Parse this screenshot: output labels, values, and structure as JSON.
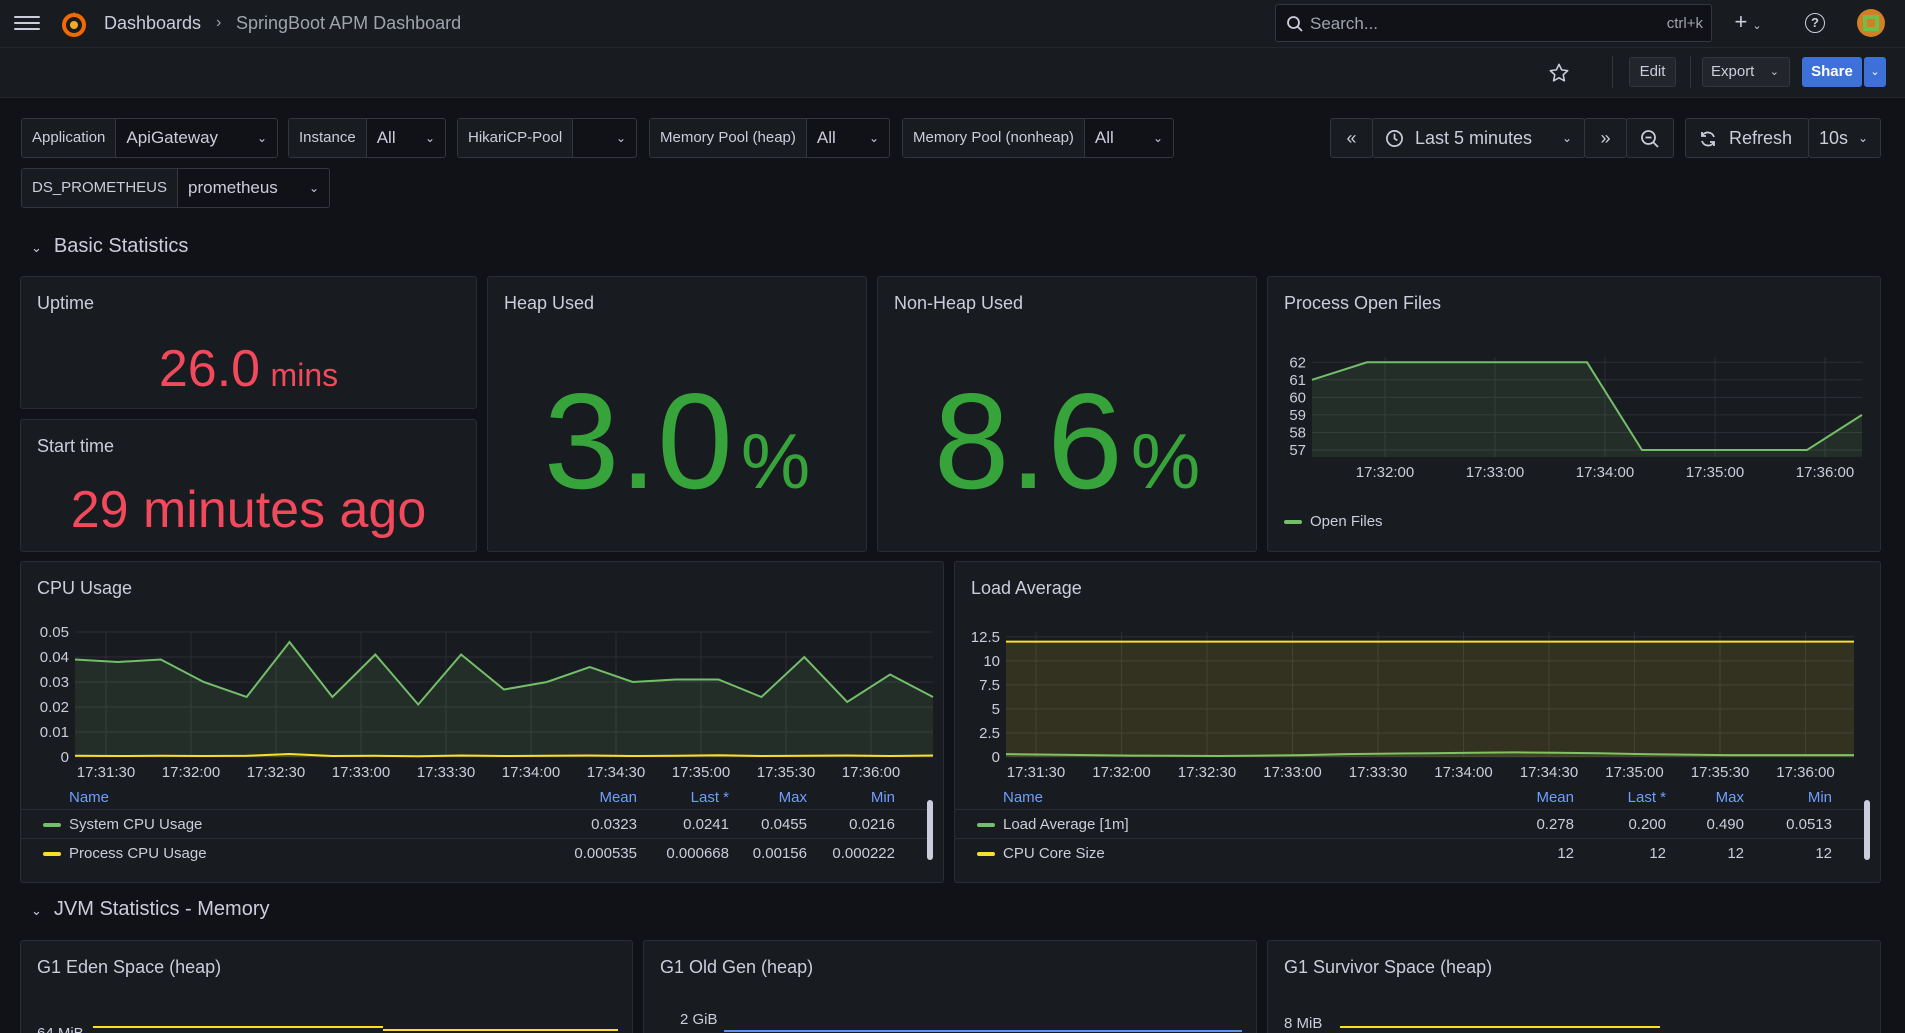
{
  "nav": {
    "crumb_root": "Dashboards",
    "crumb_sep": "›",
    "crumb_current": "SpringBoot APM Dashboard",
    "search_placeholder": "Search...",
    "search_shortcut": "ctrl+k",
    "add_label": "+",
    "help_label": "?"
  },
  "toolbar": {
    "edit": "Edit",
    "export": "Export",
    "share": "Share"
  },
  "variables": [
    {
      "label": "Application",
      "value": "ApiGateway"
    },
    {
      "label": "Instance",
      "value": "All"
    },
    {
      "label": "HikariCP-Pool",
      "value": ""
    },
    {
      "label": "Memory Pool (heap)",
      "value": "All"
    },
    {
      "label": "Memory Pool (nonheap)",
      "value": "All"
    },
    {
      "label": "DS_PROMETHEUS",
      "value": "prometheus"
    }
  ],
  "timepicker": {
    "range": "Last 5 minutes",
    "refresh": "Refresh",
    "interval": "10s"
  },
  "sections": {
    "basic": "Basic Statistics",
    "jvm": "JVM Statistics - Memory"
  },
  "panels": {
    "uptime": {
      "title": "Uptime",
      "value": "26.0",
      "unit": "mins"
    },
    "start_time": {
      "title": "Start time",
      "value": "29 minutes ago"
    },
    "heap": {
      "title": "Heap Used",
      "value": "3.0",
      "unit": "%"
    },
    "nonheap": {
      "title": "Non-Heap Used",
      "value": "8.6",
      "unit": "%"
    },
    "open_files": {
      "title": "Process Open Files",
      "legend": "Open Files"
    },
    "cpu": {
      "title": "CPU Usage"
    },
    "load": {
      "title": "Load Average"
    },
    "eden": {
      "title": "G1 Eden Space (heap)",
      "tick": "64 MiB"
    },
    "oldgen": {
      "title": "G1 Old Gen (heap)",
      "tick": "2 GiB"
    },
    "survivor": {
      "title": "G1 Survivor Space (heap)",
      "tick": "8 MiB"
    }
  },
  "legend_headers": {
    "name": "Name",
    "mean": "Mean",
    "last": "Last *",
    "max": "Max",
    "min": "Min"
  },
  "cpu_legend": [
    {
      "name": "System CPU Usage",
      "mean": "0.0323",
      "last": "0.0241",
      "max": "0.0455",
      "min": "0.0216",
      "color": "#73bf69"
    },
    {
      "name": "Process CPU Usage",
      "mean": "0.000535",
      "last": "0.000668",
      "max": "0.00156",
      "min": "0.000222",
      "color": "#fade2a"
    }
  ],
  "load_legend": [
    {
      "name": "Load Average [1m]",
      "mean": "0.278",
      "last": "0.200",
      "max": "0.490",
      "min": "0.0513",
      "color": "#73bf69"
    },
    {
      "name": "CPU Core Size",
      "mean": "12",
      "last": "12",
      "max": "12",
      "min": "12",
      "color": "#fade2a"
    }
  ],
  "chart_data": [
    {
      "type": "line",
      "title": "Process Open Files",
      "x": [
        "17:31:45",
        "17:32:00",
        "17:32:30",
        "17:33:00",
        "17:33:30",
        "17:34:00",
        "17:34:30",
        "17:35:00",
        "17:35:30",
        "17:36:00",
        "17:36:15"
      ],
      "x_ticks": [
        "17:32:00",
        "17:33:00",
        "17:34:00",
        "17:35:00",
        "17:36:00"
      ],
      "y_ticks": [
        57,
        58,
        59,
        60,
        61,
        62
      ],
      "ylim": [
        56.6,
        62.3
      ],
      "series": [
        {
          "name": "Open Files",
          "color": "#73bf69",
          "values": [
            61,
            62,
            62,
            62,
            62,
            62,
            57,
            57,
            57,
            57,
            59
          ]
        }
      ]
    },
    {
      "type": "line",
      "title": "CPU Usage",
      "x_ticks": [
        "17:31:30",
        "17:32:00",
        "17:32:30",
        "17:33:00",
        "17:33:30",
        "17:34:00",
        "17:34:30",
        "17:35:00",
        "17:35:30",
        "17:36:00"
      ],
      "y_ticks": [
        0,
        0.01,
        0.02,
        0.03,
        0.04,
        0.05
      ],
      "ylim": [
        0,
        0.05
      ],
      "series": [
        {
          "name": "System CPU Usage",
          "color": "#73bf69",
          "values": [
            0.039,
            0.038,
            0.039,
            0.03,
            0.024,
            0.046,
            0.024,
            0.041,
            0.021,
            0.041,
            0.027,
            0.03,
            0.036,
            0.03,
            0.031,
            0.031,
            0.024,
            0.04,
            0.022,
            0.033,
            0.024
          ]
        },
        {
          "name": "Process CPU Usage",
          "color": "#fade2a",
          "values": [
            0.0005,
            0.0004,
            0.0005,
            0.0004,
            0.0005,
            0.0012,
            0.0004,
            0.0005,
            0.0003,
            0.0006,
            0.0004,
            0.0005,
            0.0006,
            0.0004,
            0.0005,
            0.0007,
            0.0004,
            0.0005,
            0.0006,
            0.0004,
            0.0006
          ]
        }
      ]
    },
    {
      "type": "line",
      "title": "Load Average",
      "x_ticks": [
        "17:31:30",
        "17:32:00",
        "17:32:30",
        "17:33:00",
        "17:33:30",
        "17:34:00",
        "17:34:30",
        "17:35:00",
        "17:35:30",
        "17:36:00"
      ],
      "y_ticks": [
        0,
        2.5,
        5,
        7.5,
        10,
        12.5
      ],
      "ylim": [
        0,
        13
      ],
      "series": [
        {
          "name": "Load Average [1m]",
          "color": "#73bf69",
          "values": [
            0.3,
            0.25,
            0.2,
            0.15,
            0.12,
            0.1,
            0.15,
            0.2,
            0.3,
            0.35,
            0.4,
            0.45,
            0.48,
            0.45,
            0.4,
            0.3,
            0.25,
            0.2,
            0.2,
            0.2,
            0.2
          ]
        },
        {
          "name": "CPU Core Size",
          "color": "#fade2a",
          "values": [
            12,
            12,
            12,
            12,
            12,
            12,
            12,
            12,
            12,
            12,
            12,
            12,
            12,
            12,
            12,
            12,
            12,
            12,
            12,
            12,
            12
          ]
        }
      ]
    }
  ]
}
